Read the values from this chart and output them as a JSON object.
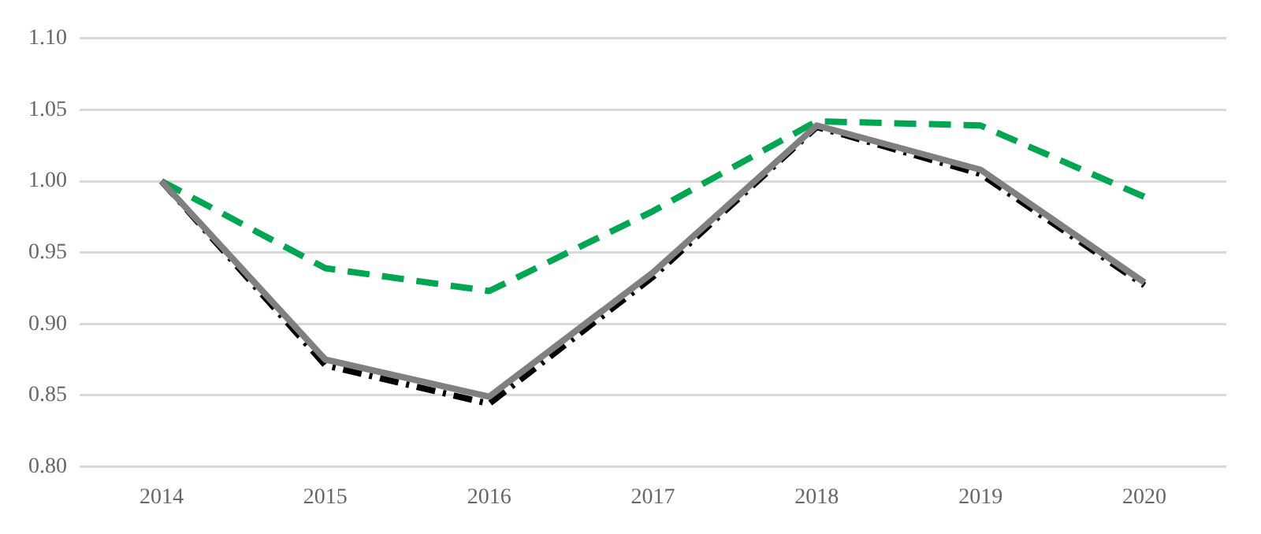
{
  "chart_data": {
    "type": "line",
    "categories": [
      "2014",
      "2015",
      "2016",
      "2017",
      "2018",
      "2019",
      "2020"
    ],
    "series": [
      {
        "color": "#00a651",
        "line_style": "dashed",
        "values": [
          1.0,
          0.939,
          0.923,
          0.979,
          1.042,
          1.039,
          0.989
        ]
      },
      {
        "color": "#000000",
        "line_style": "dashdot",
        "values": [
          1.0,
          0.871,
          0.844,
          0.933,
          1.038,
          1.005,
          0.927
        ]
      },
      {
        "color": "#808080",
        "line_style": "solid",
        "values": [
          1.0,
          0.875,
          0.849,
          0.936,
          1.039,
          1.008,
          0.929
        ]
      }
    ],
    "ylim": [
      0.8,
      1.1
    ],
    "yticks": [
      {
        "value": 0.8,
        "label": "0.80"
      },
      {
        "value": 0.85,
        "label": "0.85"
      },
      {
        "value": 0.9,
        "label": "0.90"
      },
      {
        "value": 0.95,
        "label": "0.95"
      },
      {
        "value": 1.0,
        "label": "1.00"
      },
      {
        "value": 1.05,
        "label": "1.05"
      },
      {
        "value": 1.1,
        "label": "1.10"
      }
    ],
    "grid": "y",
    "legend": false,
    "marker": "none"
  }
}
